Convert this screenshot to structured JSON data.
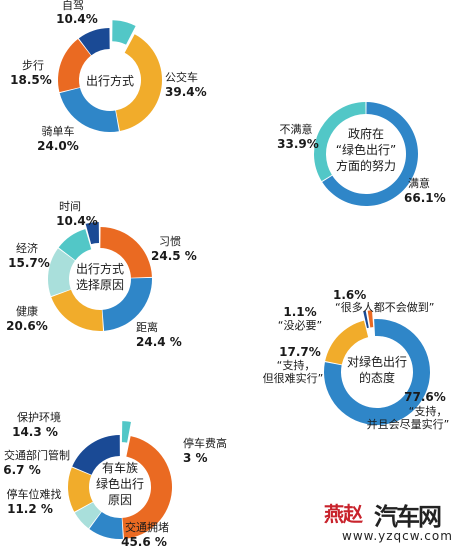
{
  "colors": {
    "navy": "#1a4a95",
    "teal": "#52c7c7",
    "orange": "#f1ac2b",
    "blue": "#2f86c8",
    "red_orange": "#ea6a22",
    "light_teal": "#a9dfdb"
  },
  "chart_data": [
    {
      "type": "pie",
      "center_label": [
        "出行方式"
      ],
      "slices": [
        {
          "name": "自驾",
          "value": 10.4,
          "label": "10.4%",
          "color": "navy"
        },
        {
          "name": "",
          "value": 7.7,
          "label": "",
          "color": "teal"
        },
        {
          "name": "公交车",
          "value": 39.4,
          "label": "39.4%",
          "color": "orange"
        },
        {
          "name": "骑单车",
          "value": 24.0,
          "label": "24.0%",
          "color": "blue"
        },
        {
          "name": "步行",
          "value": 18.5,
          "label": "18.5%",
          "color": "red_orange"
        }
      ]
    },
    {
      "type": "pie",
      "center_label": [
        "政府在",
        "“绿色出行”",
        "方面的努力"
      ],
      "slices": [
        {
          "name": "满意",
          "value": 66.1,
          "label": "66.1%",
          "color": "blue"
        },
        {
          "name": "不满意",
          "value": 33.9,
          "label": "33.9%",
          "color": "teal"
        }
      ]
    },
    {
      "type": "pie",
      "center_label": [
        "出行方式",
        "选择原因"
      ],
      "slices": [
        {
          "name": "",
          "value": 4.4,
          "label": "",
          "color": "navy"
        },
        {
          "name": "习惯",
          "value": 24.5,
          "label": "24.5 %",
          "color": "red_orange"
        },
        {
          "name": "距离",
          "value": 24.4,
          "label": "24.4 %",
          "color": "blue"
        },
        {
          "name": "健康",
          "value": 20.6,
          "label": "20.6%",
          "color": "orange"
        },
        {
          "name": "经济",
          "value": 15.7,
          "label": "15.7%",
          "color": "light_teal"
        },
        {
          "name": "时间",
          "value": 10.4,
          "label": "10.4%",
          "color": "teal"
        }
      ]
    },
    {
      "type": "pie",
      "center_label": [
        "对绿色出行",
        "的态度"
      ],
      "slices": [
        {
          "name": "“很多人都不会做到”",
          "value": 1.6,
          "label": "1.6%",
          "color": "red_orange"
        },
        {
          "name": "“支持，并且会尽量实行”",
          "value": 77.6,
          "label": "77.6%",
          "color": "blue"
        },
        {
          "name": "“支持，但很难实行”",
          "value": 17.7,
          "label": "17.7%",
          "color": "orange"
        },
        {
          "name": "“没必要”",
          "value": 1.1,
          "label": "1.1%",
          "color": "navy"
        }
      ]
    },
    {
      "type": "pie",
      "center_label": [
        "有车族",
        "绿色出行",
        "原因"
      ],
      "slices": [
        {
          "name": "",
          "value": 18.7,
          "label": "",
          "color": "navy"
        },
        {
          "name": "停车费高",
          "value": 3,
          "label": "3 %",
          "color": "teal"
        },
        {
          "name": "交通拥堵",
          "value": 45.6,
          "label": "45.6 %",
          "color": "red_orange"
        },
        {
          "name": "停车位难找",
          "value": 11.2,
          "label": "11.2 %",
          "color": "blue"
        },
        {
          "name": "交通部门管制",
          "value": 6.7,
          "label": "6.7 %",
          "color": "light_teal"
        },
        {
          "name": "保护环境",
          "value": 14.3,
          "label": "14.3 %",
          "color": "orange"
        }
      ]
    }
  ],
  "watermark": {
    "logo_cn": "燕赵",
    "logo_main": "汽车网",
    "url": "www.yzqcw.com"
  }
}
